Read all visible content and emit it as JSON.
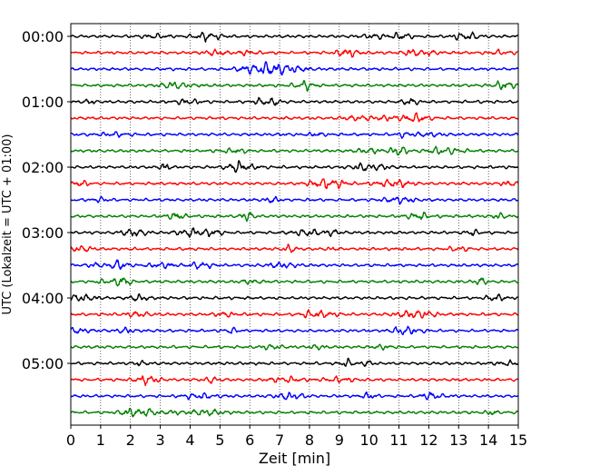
{
  "chart_data": {
    "type": "line",
    "xlabel": "Zeit  [min]",
    "ylabel": "UTC (Lokalzeit = UTC + 01:00)",
    "xlim": [
      0,
      15
    ],
    "x_ticks": [
      "0",
      "1",
      "2",
      "3",
      "4",
      "5",
      "6",
      "7",
      "8",
      "9",
      "10",
      "11",
      "12",
      "13",
      "14",
      "15"
    ],
    "y_ticks": [
      {
        "label": "00:00",
        "trace": 0
      },
      {
        "label": "01:00",
        "trace": 4
      },
      {
        "label": "02:00",
        "trace": 8
      },
      {
        "label": "03:00",
        "trace": 12
      },
      {
        "label": "04:00",
        "trace": 16
      },
      {
        "label": "05:00",
        "trace": 20
      }
    ],
    "grid": "vertical dotted lines at each minute",
    "trace_interval_min": 15,
    "trace_count": 24,
    "color_cycle": [
      "#000000",
      "#ff0000",
      "#0000ff",
      "#008000"
    ]
  }
}
